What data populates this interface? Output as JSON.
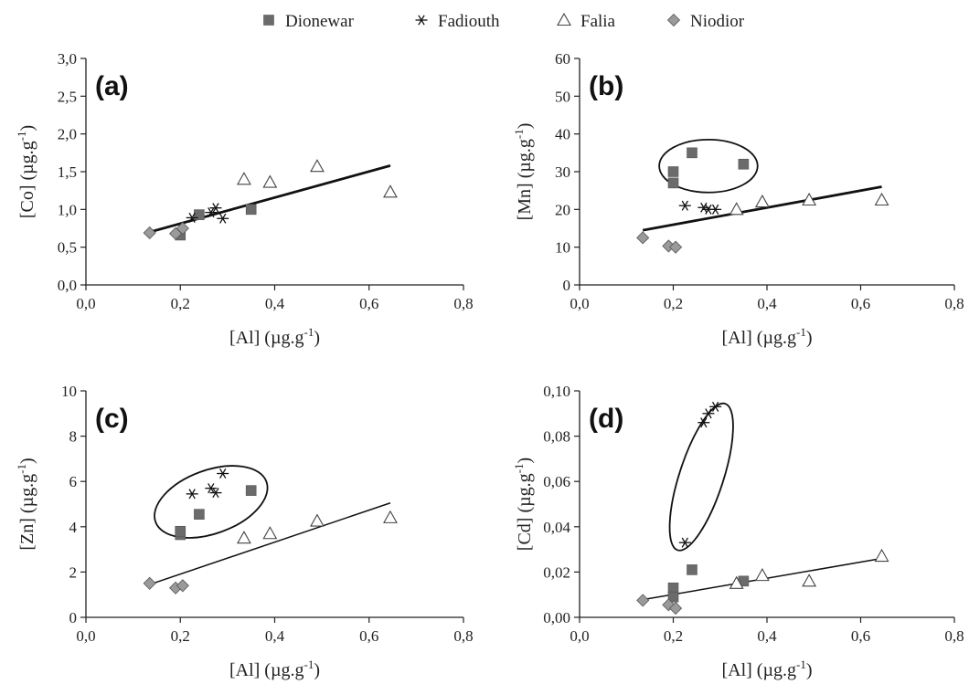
{
  "legend": {
    "items": [
      {
        "name": "Dionewar",
        "marker": "square"
      },
      {
        "name": "Fadiouth",
        "marker": "asterisk"
      },
      {
        "name": "Falia",
        "marker": "triangle"
      },
      {
        "name": "Niodior",
        "marker": "diamond"
      }
    ]
  },
  "colors": {
    "square": "#6b6b6b",
    "diamond": "#9a9a9a",
    "line": "#111111",
    "axis": "#222222"
  },
  "chart_data": [
    {
      "type": "scatter",
      "panel_label": "(a)",
      "xlabel": "[Al] (µg.g-1)",
      "ylabel": "[Co] (µg.g-1)",
      "xlim": [
        0,
        0.8
      ],
      "ylim": [
        0,
        3
      ],
      "xticks": [
        "0,0",
        "0,2",
        "0,4",
        "0,6",
        "0,8"
      ],
      "yticks": [
        "0,0",
        "0,5",
        "1,0",
        "1,5",
        "2,0",
        "2,5",
        "3,0"
      ],
      "series": [
        {
          "name": "Dionewar",
          "points": [
            [
              0.2,
              0.66
            ],
            [
              0.24,
              0.93
            ],
            [
              0.35,
              1.0
            ]
          ]
        },
        {
          "name": "Fadiouth",
          "points": [
            [
              0.225,
              0.89
            ],
            [
              0.265,
              0.96
            ],
            [
              0.275,
              1.02
            ],
            [
              0.29,
              0.88
            ]
          ]
        },
        {
          "name": "Falia",
          "points": [
            [
              0.335,
              1.4
            ],
            [
              0.39,
              1.36
            ],
            [
              0.49,
              1.57
            ],
            [
              0.645,
              1.23
            ]
          ]
        },
        {
          "name": "Niodior",
          "points": [
            [
              0.135,
              0.69
            ],
            [
              0.19,
              0.68
            ],
            [
              0.205,
              0.75
            ]
          ]
        }
      ],
      "trendline": {
        "x": [
          0.135,
          0.645
        ],
        "y": [
          0.7,
          1.58
        ],
        "width": "thick"
      },
      "ellipse": null
    },
    {
      "type": "scatter",
      "panel_label": "(b)",
      "xlabel": "[Al] (µg.g-1)",
      "ylabel": "[Mn] (µg.g-1)",
      "xlim": [
        0,
        0.8
      ],
      "ylim": [
        0,
        60
      ],
      "xticks": [
        "0,0",
        "0,2",
        "0,4",
        "0,6",
        "0,8"
      ],
      "yticks": [
        "0",
        "10",
        "20",
        "30",
        "40",
        "50",
        "60"
      ],
      "series": [
        {
          "name": "Dionewar",
          "points": [
            [
              0.2,
              30
            ],
            [
              0.2,
              27
            ],
            [
              0.24,
              35
            ],
            [
              0.35,
              32
            ]
          ]
        },
        {
          "name": "Fadiouth",
          "points": [
            [
              0.225,
              21
            ],
            [
              0.265,
              20.5
            ],
            [
              0.275,
              20
            ],
            [
              0.29,
              20
            ]
          ]
        },
        {
          "name": "Falia",
          "points": [
            [
              0.335,
              20
            ],
            [
              0.39,
              22
            ],
            [
              0.49,
              22.5
            ],
            [
              0.645,
              22.5
            ]
          ]
        },
        {
          "name": "Niodior",
          "points": [
            [
              0.135,
              12.5
            ],
            [
              0.19,
              10.3
            ],
            [
              0.205,
              10
            ]
          ]
        }
      ],
      "trendline": {
        "x": [
          0.135,
          0.645
        ],
        "y": [
          14.5,
          26
        ],
        "width": "thick"
      },
      "ellipse": {
        "cx": 0.275,
        "cy": 31.5,
        "rx": 0.105,
        "ry": 7,
        "rotate": 0
      }
    },
    {
      "type": "scatter",
      "panel_label": "(c)",
      "xlabel": "[Al] (µg.g-1)",
      "ylabel": "[Zn] (µg.g-1)",
      "xlim": [
        0,
        0.8
      ],
      "ylim": [
        0,
        10
      ],
      "xticks": [
        "0,0",
        "0,2",
        "0,4",
        "0,6",
        "0,8"
      ],
      "yticks": [
        "0",
        "2",
        "4",
        "6",
        "8",
        "10"
      ],
      "series": [
        {
          "name": "Dionewar",
          "points": [
            [
              0.2,
              3.65
            ],
            [
              0.2,
              3.8
            ],
            [
              0.24,
              4.55
            ],
            [
              0.35,
              5.6
            ]
          ]
        },
        {
          "name": "Fadiouth",
          "points": [
            [
              0.225,
              5.45
            ],
            [
              0.265,
              5.7
            ],
            [
              0.275,
              5.5
            ],
            [
              0.29,
              6.35
            ]
          ]
        },
        {
          "name": "Falia",
          "points": [
            [
              0.335,
              3.5
            ],
            [
              0.39,
              3.7
            ],
            [
              0.49,
              4.25
            ],
            [
              0.645,
              4.4
            ]
          ]
        },
        {
          "name": "Niodior",
          "points": [
            [
              0.135,
              1.5
            ],
            [
              0.19,
              1.3
            ],
            [
              0.205,
              1.4
            ]
          ]
        }
      ],
      "trendline": {
        "x": [
          0.135,
          0.645
        ],
        "y": [
          1.45,
          5.05
        ],
        "width": "thin"
      },
      "ellipse": {
        "cx": 0.265,
        "cy": 5.1,
        "rx": 0.125,
        "ry": 1.4,
        "rotate": -20
      }
    },
    {
      "type": "scatter",
      "panel_label": "(d)",
      "xlabel": "[Al] (µg.g-1)",
      "ylabel": "[Cd] (µg.g-1)",
      "xlim": [
        0,
        0.8
      ],
      "ylim": [
        0,
        0.1
      ],
      "xticks": [
        "0,0",
        "0,2",
        "0,4",
        "0,6",
        "0,8"
      ],
      "yticks": [
        "0,00",
        "0,02",
        "0,04",
        "0,06",
        "0,08",
        "0,10"
      ],
      "series": [
        {
          "name": "Dionewar",
          "points": [
            [
              0.2,
              0.013
            ],
            [
              0.2,
              0.009
            ],
            [
              0.24,
              0.021
            ],
            [
              0.35,
              0.016
            ]
          ]
        },
        {
          "name": "Fadiouth",
          "points": [
            [
              0.225,
              0.033
            ],
            [
              0.265,
              0.086
            ],
            [
              0.275,
              0.09
            ],
            [
              0.29,
              0.093
            ]
          ]
        },
        {
          "name": "Falia",
          "points": [
            [
              0.335,
              0.015
            ],
            [
              0.39,
              0.0185
            ],
            [
              0.49,
              0.016
            ],
            [
              0.645,
              0.027
            ]
          ]
        },
        {
          "name": "Niodior",
          "points": [
            [
              0.135,
              0.0075
            ],
            [
              0.19,
              0.0055
            ],
            [
              0.205,
              0.004
            ]
          ]
        }
      ],
      "trendline": {
        "x": [
          0.135,
          0.645
        ],
        "y": [
          0.0078,
          0.026
        ],
        "width": "thin"
      },
      "ellipse": {
        "cx": 0.26,
        "cy": 0.062,
        "rx": 0.047,
        "ry": 0.034,
        "rotate": 18
      }
    }
  ]
}
